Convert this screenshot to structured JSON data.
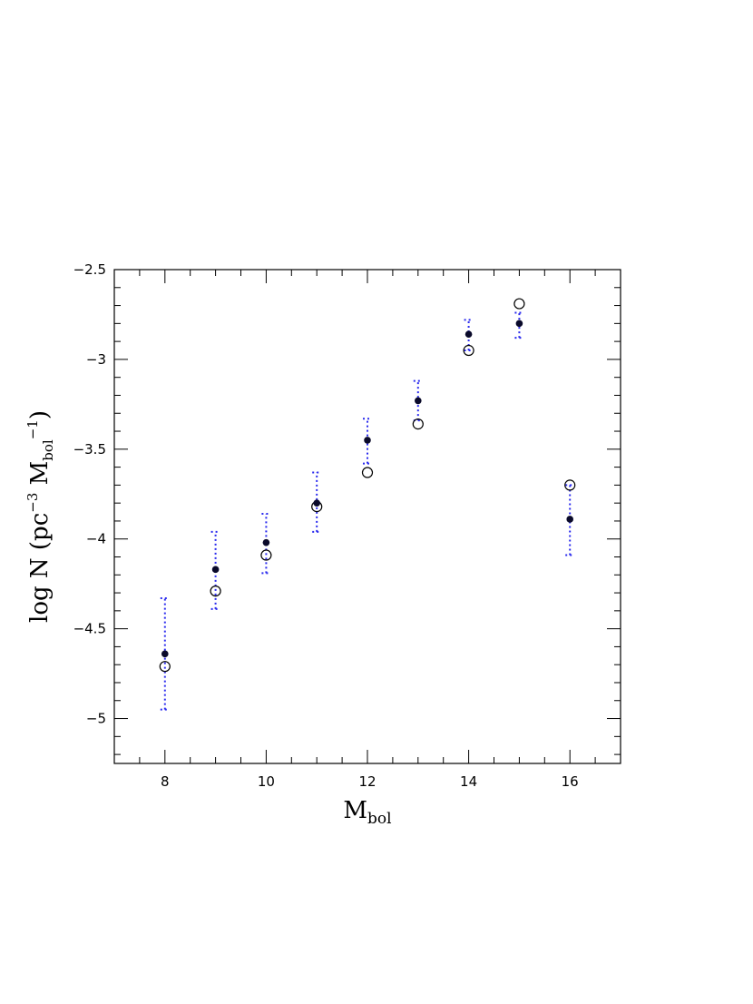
{
  "chart_data": {
    "type": "scatter",
    "title": "",
    "xlabel": "M",
    "xlabel_sub": "bol",
    "ylabel_parts": [
      "log N  (pc",
      "−3",
      " M",
      "bol",
      "−1",
      ")"
    ],
    "xlim": [
      7,
      17
    ],
    "ylim": [
      -5.25,
      -2.5
    ],
    "x_ticks": [
      8,
      10,
      12,
      14,
      16
    ],
    "x_tick_labels": [
      "8",
      "10",
      "12",
      "14",
      "16"
    ],
    "y_ticks": [
      -5,
      -4.5,
      -4,
      -3.5,
      -3,
      -2.5
    ],
    "y_tick_labels": [
      "−5",
      "−4.5",
      "−4",
      "−3.5",
      "−3",
      "−2.5"
    ],
    "grid": false,
    "colors": {
      "filled": "#0a0a2a",
      "open": "#000000",
      "errorbar": "#2a2aee"
    },
    "series": [
      {
        "marker": "filled-circle",
        "x": [
          8,
          9,
          10,
          11,
          12,
          13,
          14,
          15,
          16
        ],
        "y": [
          -4.64,
          -4.17,
          -4.02,
          -3.8,
          -3.45,
          -3.23,
          -2.86,
          -2.8,
          -3.89
        ],
        "err_low": [
          -4.95,
          -4.39,
          -4.19,
          -3.96,
          -3.58,
          -3.34,
          -2.95,
          -2.88,
          -4.09
        ],
        "err_high": [
          -4.33,
          -3.96,
          -3.86,
          -3.63,
          -3.33,
          -3.12,
          -2.78,
          -2.74,
          -3.7
        ]
      },
      {
        "marker": "open-circle",
        "x": [
          8,
          9,
          10,
          11,
          12,
          13,
          14,
          15,
          16
        ],
        "y": [
          -4.71,
          -4.29,
          -4.09,
          -3.82,
          -3.63,
          -3.36,
          -2.95,
          -2.69,
          -3.7
        ]
      }
    ]
  }
}
